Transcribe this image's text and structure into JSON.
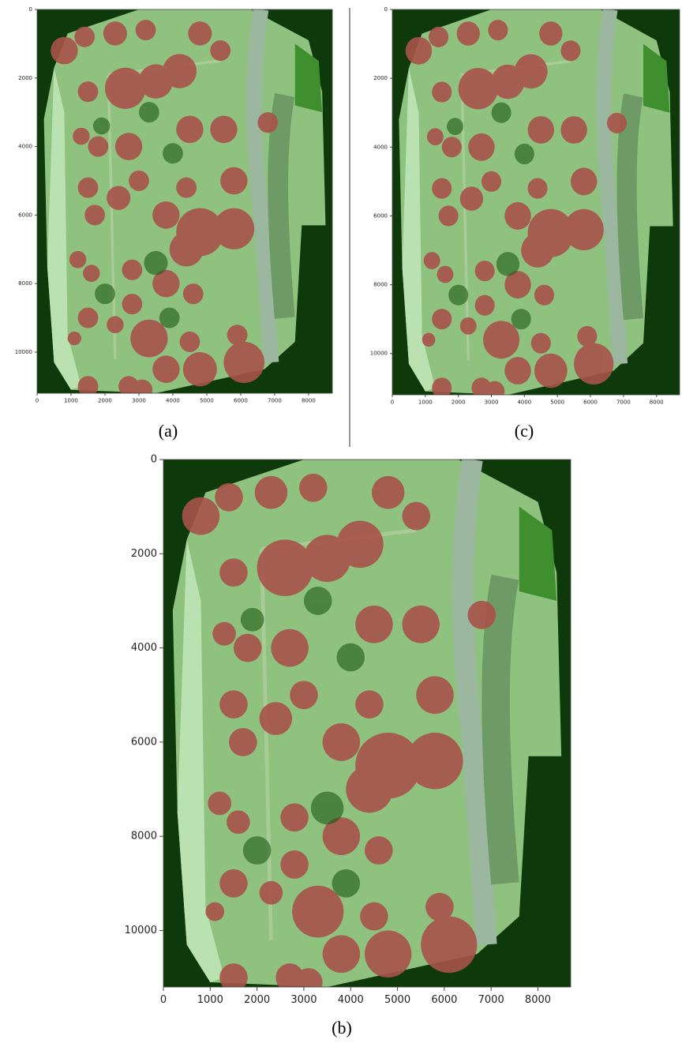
{
  "chart_data": [
    {
      "type": "image",
      "label": "(a)",
      "xlim": [
        0,
        8700
      ],
      "ylim": [
        11200,
        0
      ],
      "xticks": [
        0,
        1000,
        2000,
        3000,
        4000,
        5000,
        6000,
        7000,
        8000
      ],
      "yticks": [
        0,
        2000,
        4000,
        6000,
        8000,
        10000
      ]
    },
    {
      "type": "image",
      "label": "(c)",
      "xlim": [
        0,
        8700
      ],
      "ylim": [
        11200,
        0
      ],
      "xticks": [
        0,
        1000,
        2000,
        3000,
        4000,
        5000,
        6000,
        7000,
        8000
      ],
      "yticks": [
        0,
        2000,
        4000,
        6000,
        8000,
        10000
      ]
    },
    {
      "type": "image",
      "label": "(b)",
      "xlim": [
        0,
        8700
      ],
      "ylim": [
        11200,
        0
      ],
      "xticks": [
        0,
        1000,
        2000,
        3000,
        4000,
        5000,
        6000,
        7000,
        8000
      ],
      "yticks": [
        0,
        2000,
        4000,
        6000,
        8000,
        10000
      ]
    }
  ]
}
